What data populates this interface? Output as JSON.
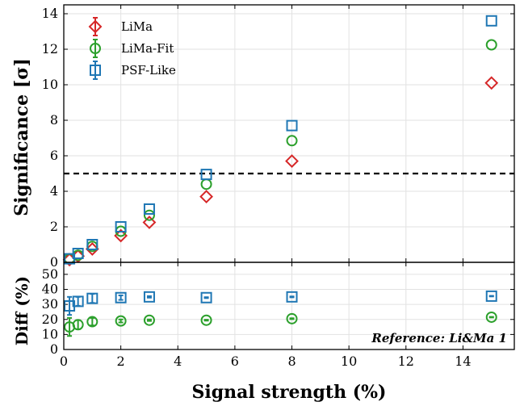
{
  "chart_data": [
    {
      "type": "scatter",
      "panel": "main",
      "xlabel": "Signal strength (%)",
      "ylabel": "Significance [σ]",
      "xlim": [
        0,
        15.8
      ],
      "ylim": [
        0,
        14.5
      ],
      "xticks": [
        0,
        2,
        4,
        6,
        8,
        10,
        12,
        14
      ],
      "yticks": [
        0,
        2,
        4,
        6,
        8,
        10,
        12,
        14
      ],
      "grid": true,
      "legend": "top-left",
      "reference_line": {
        "y": 5,
        "style": "dashed",
        "color": "#000000"
      },
      "series": [
        {
          "name": "LiMa",
          "marker": "diamond",
          "color": "#d62728",
          "x": [
            0.2,
            0.5,
            1,
            2,
            3,
            5,
            8,
            15
          ],
          "y": [
            0.15,
            0.35,
            0.75,
            1.5,
            2.25,
            3.7,
            5.7,
            10.1
          ]
        },
        {
          "name": "LiMa-Fit",
          "marker": "circle",
          "color": "#2ca02c",
          "x": [
            0.2,
            0.5,
            1,
            2,
            3,
            5,
            8,
            15
          ],
          "y": [
            0.2,
            0.4,
            0.9,
            1.75,
            2.65,
            4.4,
            6.85,
            12.25
          ]
        },
        {
          "name": "PSF-Like",
          "marker": "square",
          "color": "#1f77b4",
          "x": [
            0.2,
            0.5,
            1,
            2,
            3,
            5,
            8,
            15
          ],
          "y": [
            0.2,
            0.5,
            1.0,
            2.0,
            3.0,
            4.95,
            7.7,
            13.6
          ]
        }
      ]
    },
    {
      "type": "scatter",
      "panel": "diff",
      "xlabel": "Signal strength (%)",
      "ylabel": "Diff (%)",
      "xlim": [
        0,
        15.8
      ],
      "ylim": [
        0,
        58
      ],
      "xticks": [
        0,
        2,
        4,
        6,
        8,
        10,
        12,
        14
      ],
      "yticks": [
        0,
        10,
        20,
        30,
        40,
        50
      ],
      "grid": true,
      "annotation": "Reference: Li&Ma 1",
      "series": [
        {
          "name": "LiMa-Fit",
          "marker": "circle",
          "color": "#2ca02c",
          "x": [
            0.2,
            0.5,
            1,
            2,
            3,
            5,
            8,
            15
          ],
          "y": [
            15,
            16.5,
            18.5,
            19,
            19.5,
            19.5,
            20.5,
            21.5
          ],
          "err": [
            6,
            3,
            2.5,
            1,
            0.5,
            0.3,
            0.3,
            0.2
          ]
        },
        {
          "name": "PSF-Like",
          "marker": "square",
          "color": "#1f77b4",
          "x": [
            0.2,
            0.5,
            1,
            2,
            3,
            5,
            8,
            15
          ],
          "y": [
            29,
            32,
            34,
            34.5,
            35,
            34.5,
            35,
            35.5
          ],
          "err": [
            6,
            3,
            3,
            1.5,
            0.5,
            0.3,
            0.3,
            0.2
          ]
        }
      ]
    }
  ],
  "colors": {
    "lima": "#d62728",
    "limafit": "#2ca02c",
    "psflike": "#1f77b4",
    "grid": "#e2e2e2"
  }
}
